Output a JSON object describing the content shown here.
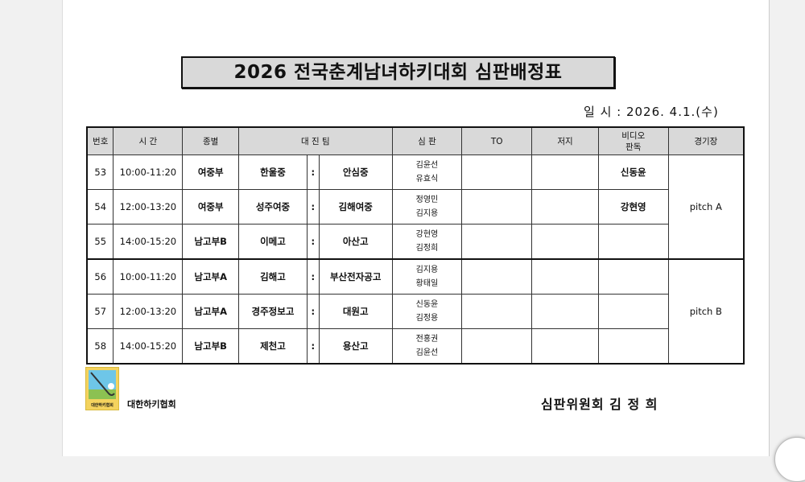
{
  "title": "2026 전국춘계남녀하키대회 심판배정표",
  "date": "일 시 : 2026. 4.1.(수)",
  "headers": {
    "no": "번호",
    "time": "시  간",
    "division": "종별",
    "match": "대 진 팀",
    "referee": "심  판",
    "to": "TO",
    "judge": "저지",
    "video_line1": "비디오",
    "video_line2": "판독",
    "venue": "경기장"
  },
  "rows": [
    {
      "no": "53",
      "time": "10:00-11:20",
      "division": "여중부",
      "team1": "한울중",
      "vs": ":",
      "team2": "안심중",
      "ref1": "김윤선",
      "ref2": "유효식",
      "to": "",
      "judge": "",
      "video": "신동윤"
    },
    {
      "no": "54",
      "time": "12:00-13:20",
      "division": "여중부",
      "team1": "성주여중",
      "vs": ":",
      "team2": "김해여중",
      "ref1": "정영민",
      "ref2": "김지용",
      "to": "",
      "judge": "",
      "video": "강현영"
    },
    {
      "no": "55",
      "time": "14:00-15:20",
      "division": "남고부B",
      "team1": "이메고",
      "vs": ":",
      "team2": "아산고",
      "ref1": "강현영",
      "ref2": "김정희",
      "to": "",
      "judge": "",
      "video": ""
    },
    {
      "no": "56",
      "time": "10:00-11:20",
      "division": "남고부A",
      "team1": "김해고",
      "vs": ":",
      "team2": "부산전자공고",
      "ref1": "김지용",
      "ref2": "황태일",
      "to": "",
      "judge": "",
      "video": ""
    },
    {
      "no": "57",
      "time": "12:00-13:20",
      "division": "남고부A",
      "team1": "경주정보고",
      "vs": ":",
      "team2": "대원고",
      "ref1": "신동윤",
      "ref2": "김정용",
      "to": "",
      "judge": "",
      "video": ""
    },
    {
      "no": "58",
      "time": "14:00-15:20",
      "division": "남고부B",
      "team1": "제천고",
      "vs": ":",
      "team2": "용산고",
      "ref1": "전홍권",
      "ref2": "김윤선",
      "to": "",
      "judge": "",
      "video": ""
    }
  ],
  "venues": [
    "pitch A",
    "pitch B"
  ],
  "footer": {
    "logo_text": "대한하키협회",
    "org": "대한하키협회",
    "signature": "심판위원회 김 정 희"
  }
}
